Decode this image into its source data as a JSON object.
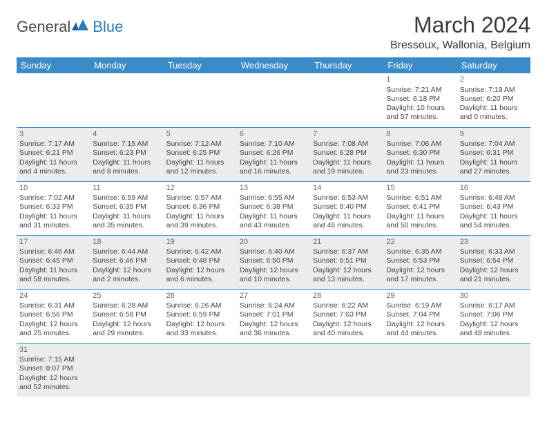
{
  "brand": {
    "text1": "General",
    "text2": "Blue"
  },
  "title": "March 2024",
  "location": "Bressoux, Wallonia, Belgium",
  "colors": {
    "header_bg": "#3b8bc9",
    "header_text": "#ffffff",
    "row_shade": "#ececec",
    "row_plain": "#ffffff",
    "border": "#3b8bc9",
    "logo_blue": "#2b7bbf"
  },
  "weekdays": [
    "Sunday",
    "Monday",
    "Tuesday",
    "Wednesday",
    "Thursday",
    "Friday",
    "Saturday"
  ],
  "weeks": [
    {
      "shaded": false,
      "days": [
        null,
        null,
        null,
        null,
        null,
        {
          "n": "1",
          "sunrise": "Sunrise: 7:21 AM",
          "sunset": "Sunset: 6:18 PM",
          "day": "Daylight: 10 hours and 57 minutes."
        },
        {
          "n": "2",
          "sunrise": "Sunrise: 7:19 AM",
          "sunset": "Sunset: 6:20 PM",
          "day": "Daylight: 11 hours and 0 minutes."
        }
      ]
    },
    {
      "shaded": true,
      "days": [
        {
          "n": "3",
          "sunrise": "Sunrise: 7:17 AM",
          "sunset": "Sunset: 6:21 PM",
          "day": "Daylight: 11 hours and 4 minutes."
        },
        {
          "n": "4",
          "sunrise": "Sunrise: 7:15 AM",
          "sunset": "Sunset: 6:23 PM",
          "day": "Daylight: 11 hours and 8 minutes."
        },
        {
          "n": "5",
          "sunrise": "Sunrise: 7:12 AM",
          "sunset": "Sunset: 6:25 PM",
          "day": "Daylight: 11 hours and 12 minutes."
        },
        {
          "n": "6",
          "sunrise": "Sunrise: 7:10 AM",
          "sunset": "Sunset: 6:26 PM",
          "day": "Daylight: 11 hours and 16 minutes."
        },
        {
          "n": "7",
          "sunrise": "Sunrise: 7:08 AM",
          "sunset": "Sunset: 6:28 PM",
          "day": "Daylight: 11 hours and 19 minutes."
        },
        {
          "n": "8",
          "sunrise": "Sunrise: 7:06 AM",
          "sunset": "Sunset: 6:30 PM",
          "day": "Daylight: 11 hours and 23 minutes."
        },
        {
          "n": "9",
          "sunrise": "Sunrise: 7:04 AM",
          "sunset": "Sunset: 6:31 PM",
          "day": "Daylight: 11 hours and 27 minutes."
        }
      ]
    },
    {
      "shaded": false,
      "days": [
        {
          "n": "10",
          "sunrise": "Sunrise: 7:02 AM",
          "sunset": "Sunset: 6:33 PM",
          "day": "Daylight: 11 hours and 31 minutes."
        },
        {
          "n": "11",
          "sunrise": "Sunrise: 6:59 AM",
          "sunset": "Sunset: 6:35 PM",
          "day": "Daylight: 11 hours and 35 minutes."
        },
        {
          "n": "12",
          "sunrise": "Sunrise: 6:57 AM",
          "sunset": "Sunset: 6:36 PM",
          "day": "Daylight: 11 hours and 39 minutes."
        },
        {
          "n": "13",
          "sunrise": "Sunrise: 6:55 AM",
          "sunset": "Sunset: 6:38 PM",
          "day": "Daylight: 11 hours and 43 minutes."
        },
        {
          "n": "14",
          "sunrise": "Sunrise: 6:53 AM",
          "sunset": "Sunset: 6:40 PM",
          "day": "Daylight: 11 hours and 46 minutes."
        },
        {
          "n": "15",
          "sunrise": "Sunrise: 6:51 AM",
          "sunset": "Sunset: 6:41 PM",
          "day": "Daylight: 11 hours and 50 minutes."
        },
        {
          "n": "16",
          "sunrise": "Sunrise: 6:48 AM",
          "sunset": "Sunset: 6:43 PM",
          "day": "Daylight: 11 hours and 54 minutes."
        }
      ]
    },
    {
      "shaded": true,
      "days": [
        {
          "n": "17",
          "sunrise": "Sunrise: 6:46 AM",
          "sunset": "Sunset: 6:45 PM",
          "day": "Daylight: 11 hours and 58 minutes."
        },
        {
          "n": "18",
          "sunrise": "Sunrise: 6:44 AM",
          "sunset": "Sunset: 6:46 PM",
          "day": "Daylight: 12 hours and 2 minutes."
        },
        {
          "n": "19",
          "sunrise": "Sunrise: 6:42 AM",
          "sunset": "Sunset: 6:48 PM",
          "day": "Daylight: 12 hours and 6 minutes."
        },
        {
          "n": "20",
          "sunrise": "Sunrise: 6:40 AM",
          "sunset": "Sunset: 6:50 PM",
          "day": "Daylight: 12 hours and 10 minutes."
        },
        {
          "n": "21",
          "sunrise": "Sunrise: 6:37 AM",
          "sunset": "Sunset: 6:51 PM",
          "day": "Daylight: 12 hours and 13 minutes."
        },
        {
          "n": "22",
          "sunrise": "Sunrise: 6:35 AM",
          "sunset": "Sunset: 6:53 PM",
          "day": "Daylight: 12 hours and 17 minutes."
        },
        {
          "n": "23",
          "sunrise": "Sunrise: 6:33 AM",
          "sunset": "Sunset: 6:54 PM",
          "day": "Daylight: 12 hours and 21 minutes."
        }
      ]
    },
    {
      "shaded": false,
      "days": [
        {
          "n": "24",
          "sunrise": "Sunrise: 6:31 AM",
          "sunset": "Sunset: 6:56 PM",
          "day": "Daylight: 12 hours and 25 minutes."
        },
        {
          "n": "25",
          "sunrise": "Sunrise: 6:28 AM",
          "sunset": "Sunset: 6:58 PM",
          "day": "Daylight: 12 hours and 29 minutes."
        },
        {
          "n": "26",
          "sunrise": "Sunrise: 6:26 AM",
          "sunset": "Sunset: 6:59 PM",
          "day": "Daylight: 12 hours and 33 minutes."
        },
        {
          "n": "27",
          "sunrise": "Sunrise: 6:24 AM",
          "sunset": "Sunset: 7:01 PM",
          "day": "Daylight: 12 hours and 36 minutes."
        },
        {
          "n": "28",
          "sunrise": "Sunrise: 6:22 AM",
          "sunset": "Sunset: 7:03 PM",
          "day": "Daylight: 12 hours and 40 minutes."
        },
        {
          "n": "29",
          "sunrise": "Sunrise: 6:19 AM",
          "sunset": "Sunset: 7:04 PM",
          "day": "Daylight: 12 hours and 44 minutes."
        },
        {
          "n": "30",
          "sunrise": "Sunrise: 6:17 AM",
          "sunset": "Sunset: 7:06 PM",
          "day": "Daylight: 12 hours and 48 minutes."
        }
      ]
    },
    {
      "shaded": true,
      "last": true,
      "days": [
        {
          "n": "31",
          "sunrise": "Sunrise: 7:15 AM",
          "sunset": "Sunset: 8:07 PM",
          "day": "Daylight: 12 hours and 52 minutes."
        },
        null,
        null,
        null,
        null,
        null,
        null
      ]
    }
  ]
}
